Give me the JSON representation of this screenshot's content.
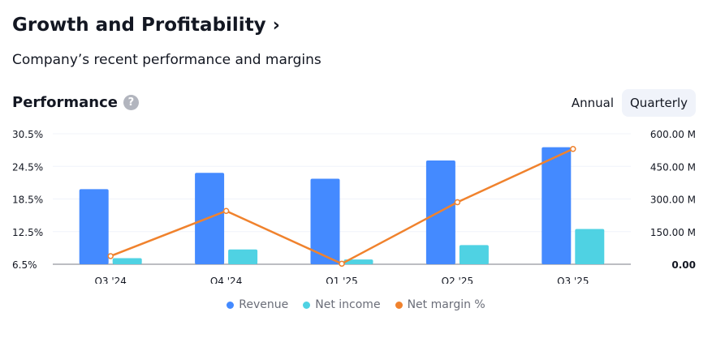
{
  "header": {
    "title": "Growth and Profitability",
    "chevron": "›"
  },
  "subtitle": "Company’s recent performance and margins",
  "section": {
    "title": "Performance",
    "help_glyph": "?"
  },
  "toggle": {
    "annual": "Annual",
    "quarterly": "Quarterly",
    "selected": "Quarterly"
  },
  "colors": {
    "revenue": "#448aff",
    "net_income": "#4fd2e3",
    "net_margin": "#f0822d"
  },
  "chart_data": {
    "type": "bar",
    "categories": [
      "Q3 '24",
      "Q4 '24",
      "Q1 '25",
      "Q2 '25",
      "Q3 '25"
    ],
    "series": [
      {
        "name": "Revenue",
        "kind": "bar",
        "axis": "right",
        "values": [
          345,
          420,
          393,
          477,
          538
        ]
      },
      {
        "name": "Net income",
        "kind": "bar",
        "axis": "right",
        "values": [
          28,
          68,
          22,
          88,
          162
        ]
      },
      {
        "name": "Net margin %",
        "kind": "line",
        "axis": "left",
        "values": [
          8.0,
          16.3,
          6.6,
          17.9,
          27.7
        ]
      }
    ],
    "y_left": {
      "ticks": [
        "30.5%",
        "24.5%",
        "18.5%",
        "12.5%",
        "6.5%"
      ],
      "range": [
        6.5,
        30.5
      ]
    },
    "y_right": {
      "ticks": [
        "600.00 M",
        "450.00 M",
        "300.00 M",
        "150.00 M",
        "0.00"
      ],
      "range": [
        0,
        600
      ]
    },
    "grid": true,
    "legend": [
      "Revenue",
      "Net income",
      "Net margin %"
    ],
    "legend_position": "bottom"
  }
}
